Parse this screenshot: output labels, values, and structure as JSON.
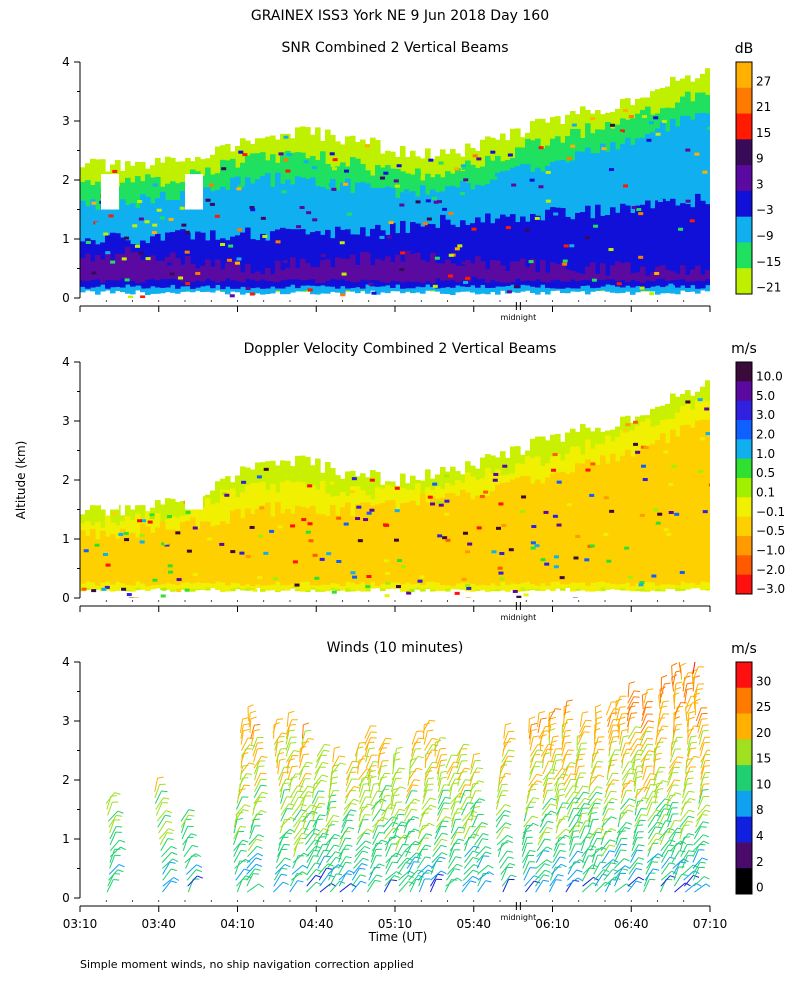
{
  "figure_title": "GRAINEX ISS3 York NE   9 Jun 2018 Day 160",
  "shared_ylabel": "Altitude (km)",
  "midnight_label": "midnight",
  "footnote": "Simple moment winds, no ship navigation correction applied",
  "chart_data": [
    {
      "type": "heatmap",
      "title": "SNR Combined 2 Vertical Beams",
      "ylim": [
        0,
        4
      ],
      "yticks": [
        "0",
        "1",
        "2",
        "3",
        "4"
      ],
      "colorbar_title": "dB",
      "colorbar_labels": [
        "27",
        "21",
        "15",
        "9",
        "3",
        "−3",
        "−9",
        "−15",
        "−21"
      ],
      "colors": [
        "#ffb000",
        "#ff7a00",
        "#ff1a00",
        "#3a0a5a",
        "#5a0aa0",
        "#1010d8",
        "#10b0f0",
        "#20e060",
        "#bff000"
      ],
      "time_start": "03:10",
      "time_end": "07:10",
      "layers": [
        {
          "color": "#bff000",
          "top": [
            2.3,
            2.2,
            2.3,
            2.5,
            2.7,
            2.8,
            2.7,
            2.5,
            2.4,
            2.6,
            2.9,
            3.1,
            3.3,
            3.6,
            3.8
          ],
          "bottom": 0.1
        },
        {
          "color": "#20e060",
          "top": [
            2.0,
            1.95,
            2.0,
            2.2,
            2.4,
            2.4,
            2.3,
            2.1,
            2.1,
            2.3,
            2.6,
            2.8,
            3.0,
            3.3,
            3.5
          ],
          "bottom": 0.1
        },
        {
          "color": "#10b0f0",
          "top": [
            1.6,
            1.6,
            1.7,
            1.9,
            2.0,
            2.0,
            1.9,
            1.8,
            1.8,
            2.0,
            2.2,
            2.4,
            2.6,
            2.9,
            3.1
          ],
          "bottom": 0.05
        },
        {
          "color": "#1010d8",
          "top": [
            0.95,
            1.0,
            1.05,
            1.1,
            1.1,
            1.05,
            1.1,
            1.2,
            1.3,
            1.35,
            1.4,
            1.45,
            1.5,
            1.6,
            1.7
          ],
          "bottom": 0.15
        },
        {
          "color": "#5a0aa0",
          "top": [
            0.7,
            0.75,
            0.7,
            0.55,
            0.5,
            0.6,
            0.65,
            0.7,
            0.7,
            0.6,
            0.55,
            0.5,
            0.5,
            0.45,
            0.45
          ],
          "bottom": 0.25
        }
      ]
    },
    {
      "type": "heatmap",
      "title": "Doppler Velocity Combined 2 Vertical Beams",
      "ylim": [
        0,
        4
      ],
      "yticks": [
        "0",
        "1",
        "2",
        "3",
        "4"
      ],
      "colorbar_title": "m/s",
      "colorbar_labels": [
        "10.0",
        "5.0",
        "3.0",
        "2.0",
        "1.0",
        "0.5",
        "0.1",
        "−0.1",
        "−0.5",
        "−1.0",
        "−2.0",
        "−3.0"
      ],
      "colors": [
        "#3a0a3a",
        "#5a0aa0",
        "#3020e0",
        "#1060ff",
        "#10b0f0",
        "#30e030",
        "#a0f000",
        "#f0f000",
        "#ffd000",
        "#ff9a00",
        "#ff5a00",
        "#ff1010"
      ],
      "time_start": "03:10",
      "time_end": "07:10",
      "layers": [
        {
          "color": "#c8f000",
          "top": [
            1.5,
            1.45,
            1.6,
            1.9,
            2.3,
            2.3,
            2.1,
            2.0,
            2.1,
            2.3,
            2.6,
            2.8,
            3.0,
            3.3,
            3.6
          ],
          "bottom": 0.1
        },
        {
          "color": "#f0f000",
          "top": [
            1.3,
            1.3,
            1.4,
            1.7,
            1.9,
            1.9,
            1.8,
            1.8,
            1.9,
            2.1,
            2.3,
            2.5,
            2.8,
            3.1,
            3.4
          ],
          "bottom": 0.1
        },
        {
          "color": "#ffd000",
          "top": [
            1.1,
            1.1,
            1.2,
            1.3,
            1.5,
            1.5,
            1.5,
            1.6,
            1.7,
            1.8,
            2.0,
            2.2,
            2.4,
            2.7,
            3.0
          ],
          "bottom": 0.2
        }
      ]
    },
    {
      "type": "wind_barbs",
      "title": "Winds (10 minutes)",
      "ylim": [
        0,
        4
      ],
      "yticks": [
        "0",
        "1",
        "2",
        "3",
        "4"
      ],
      "xlabel": "Time (UT)",
      "xticks": [
        "03:10",
        "03:40",
        "04:10",
        "04:40",
        "05:10",
        "05:40",
        "06:10",
        "06:40",
        "07:10"
      ],
      "colorbar_title": "m/s",
      "colorbar_labels": [
        "30",
        "25",
        "20",
        "15",
        "10",
        "8",
        "4",
        "2",
        "0"
      ],
      "colors": [
        "#ff1010",
        "#ff7a00",
        "#ffb000",
        "#a0e020",
        "#20d070",
        "#10a0f0",
        "#1020e0",
        "#4a0a6a",
        "#000000"
      ],
      "profile_times_min": [
        10,
        30,
        40,
        60,
        65,
        75,
        80,
        85,
        90,
        95,
        100,
        105,
        110,
        115,
        120,
        125,
        130,
        135,
        140,
        145,
        150,
        160,
        170,
        175,
        180,
        185,
        190,
        195,
        200,
        205,
        210,
        215,
        220,
        225,
        230,
        235
      ],
      "profile_tops_km": [
        1.7,
        1.9,
        1.3,
        2.9,
        3.1,
        2.9,
        3.0,
        2.8,
        2.5,
        2.4,
        2.2,
        2.5,
        2.8,
        2.6,
        2.4,
        2.7,
        2.9,
        2.6,
        2.3,
        2.5,
        2.3,
        2.8,
        2.9,
        3.0,
        3.1,
        3.2,
        3.0,
        3.1,
        3.2,
        3.3,
        3.5,
        3.4,
        3.6,
        3.8,
        3.9,
        3.9
      ]
    }
  ]
}
